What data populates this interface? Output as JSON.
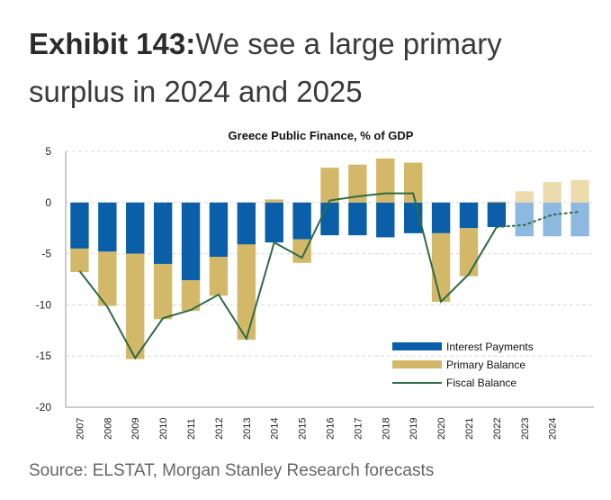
{
  "header": {
    "exhibit_label": "Exhibit 143:",
    "headline": "We see a large primary surplus in 2024 and 2025"
  },
  "source": "Source: ELSTAT, Morgan Stanley Research forecasts",
  "chart_data": {
    "type": "bar",
    "title": "Greece Public Finance, % of GDP",
    "xlabel": "",
    "ylabel": "",
    "categories": [
      "2007",
      "2008",
      "2009",
      "2010",
      "2011",
      "2012",
      "2013",
      "2014",
      "2015",
      "2016",
      "2017",
      "2018",
      "2019",
      "2020",
      "2021",
      "2022",
      "2023",
      "2024",
      ""
    ],
    "tick_labels": [
      "2007",
      "2008",
      "2009",
      "2010",
      "2011",
      "2012",
      "2013",
      "2014",
      "2015",
      "2016",
      "2017",
      "2018",
      "2019",
      "2020",
      "2021",
      "2022",
      "2023",
      "2024"
    ],
    "ylim": [
      -20,
      5
    ],
    "yticks": [
      5,
      0,
      -5,
      -10,
      -15,
      -20
    ],
    "grid": true,
    "legend_position": "bottom-right",
    "forecast_from_index": 16,
    "series": [
      {
        "name": "Interest Payments",
        "kind": "bar",
        "color": "#0a5fa8",
        "forecast_color": "#8db8e0",
        "values": [
          -4.5,
          -4.8,
          -5.0,
          -6.0,
          -7.6,
          -5.3,
          -4.1,
          -3.9,
          -3.6,
          -3.2,
          -3.2,
          -3.4,
          -3.0,
          -3.0,
          -2.5,
          -2.4,
          -3.3,
          -3.3,
          -3.3
        ]
      },
      {
        "name": "Primary Balance",
        "kind": "bar",
        "color": "#d4b86a",
        "forecast_color": "#ecdcad",
        "values": [
          -2.3,
          -5.3,
          -10.3,
          -5.4,
          -3.0,
          -3.8,
          -9.3,
          0.3,
          -2.3,
          3.4,
          3.7,
          4.3,
          3.9,
          -6.7,
          -4.7,
          0.1,
          1.1,
          2.0,
          2.2
        ]
      },
      {
        "name": "Fiscal Balance",
        "kind": "line",
        "color": "#2e6b45",
        "values": [
          -6.7,
          -10.2,
          -15.2,
          -11.3,
          -10.5,
          -9.0,
          -13.3,
          -3.9,
          -5.4,
          0.2,
          0.6,
          0.9,
          0.9,
          -9.7,
          -7.0,
          -2.4,
          -2.2,
          -1.2,
          -0.9
        ]
      }
    ]
  }
}
